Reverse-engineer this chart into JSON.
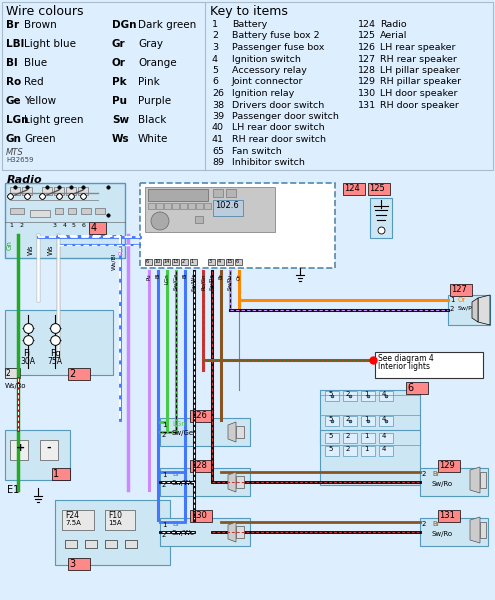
{
  "bg_color": "#ddeeff",
  "wire_colours": [
    [
      "Br",
      "Brown",
      "DGn",
      "Dark green"
    ],
    [
      "LBl",
      "Light blue",
      "Gr",
      "Gray"
    ],
    [
      "Bl",
      "Blue",
      "Or",
      "Orange"
    ],
    [
      "Ro",
      "Red",
      "Pk",
      "Pink"
    ],
    [
      "Ge",
      "Yellow",
      "Pu",
      "Purple"
    ],
    [
      "LGn",
      "Light green",
      "Sw",
      "Black"
    ],
    [
      "Gn",
      "Green",
      "Ws",
      "White"
    ]
  ],
  "key_items_col1": [
    [
      "1",
      "Battery"
    ],
    [
      "2",
      "Battery fuse box 2"
    ],
    [
      "3",
      "Passenger fuse box"
    ],
    [
      "4",
      "Ignition switch"
    ],
    [
      "5",
      "Accessory relay"
    ],
    [
      "6",
      "Joint connector"
    ],
    [
      "26",
      "Ignition relay"
    ],
    [
      "38",
      "Drivers door switch"
    ],
    [
      "39",
      "Passenger door switch"
    ],
    [
      "40",
      "LH rear door switch"
    ],
    [
      "41",
      "RH rear door switch"
    ],
    [
      "65",
      "Fan switch"
    ],
    [
      "89",
      "Inhibitor switch"
    ]
  ],
  "key_items_col2": [
    [
      "124",
      "Radio"
    ],
    [
      "125",
      "Aerial"
    ],
    [
      "126",
      "LH rear speaker"
    ],
    [
      "127",
      "RH rear speaker"
    ],
    [
      "128",
      "LH pillar speaker"
    ],
    [
      "129",
      "RH pillar speaker"
    ],
    [
      "130",
      "LH door speaker"
    ],
    [
      "131",
      "RH door speaker"
    ]
  ]
}
